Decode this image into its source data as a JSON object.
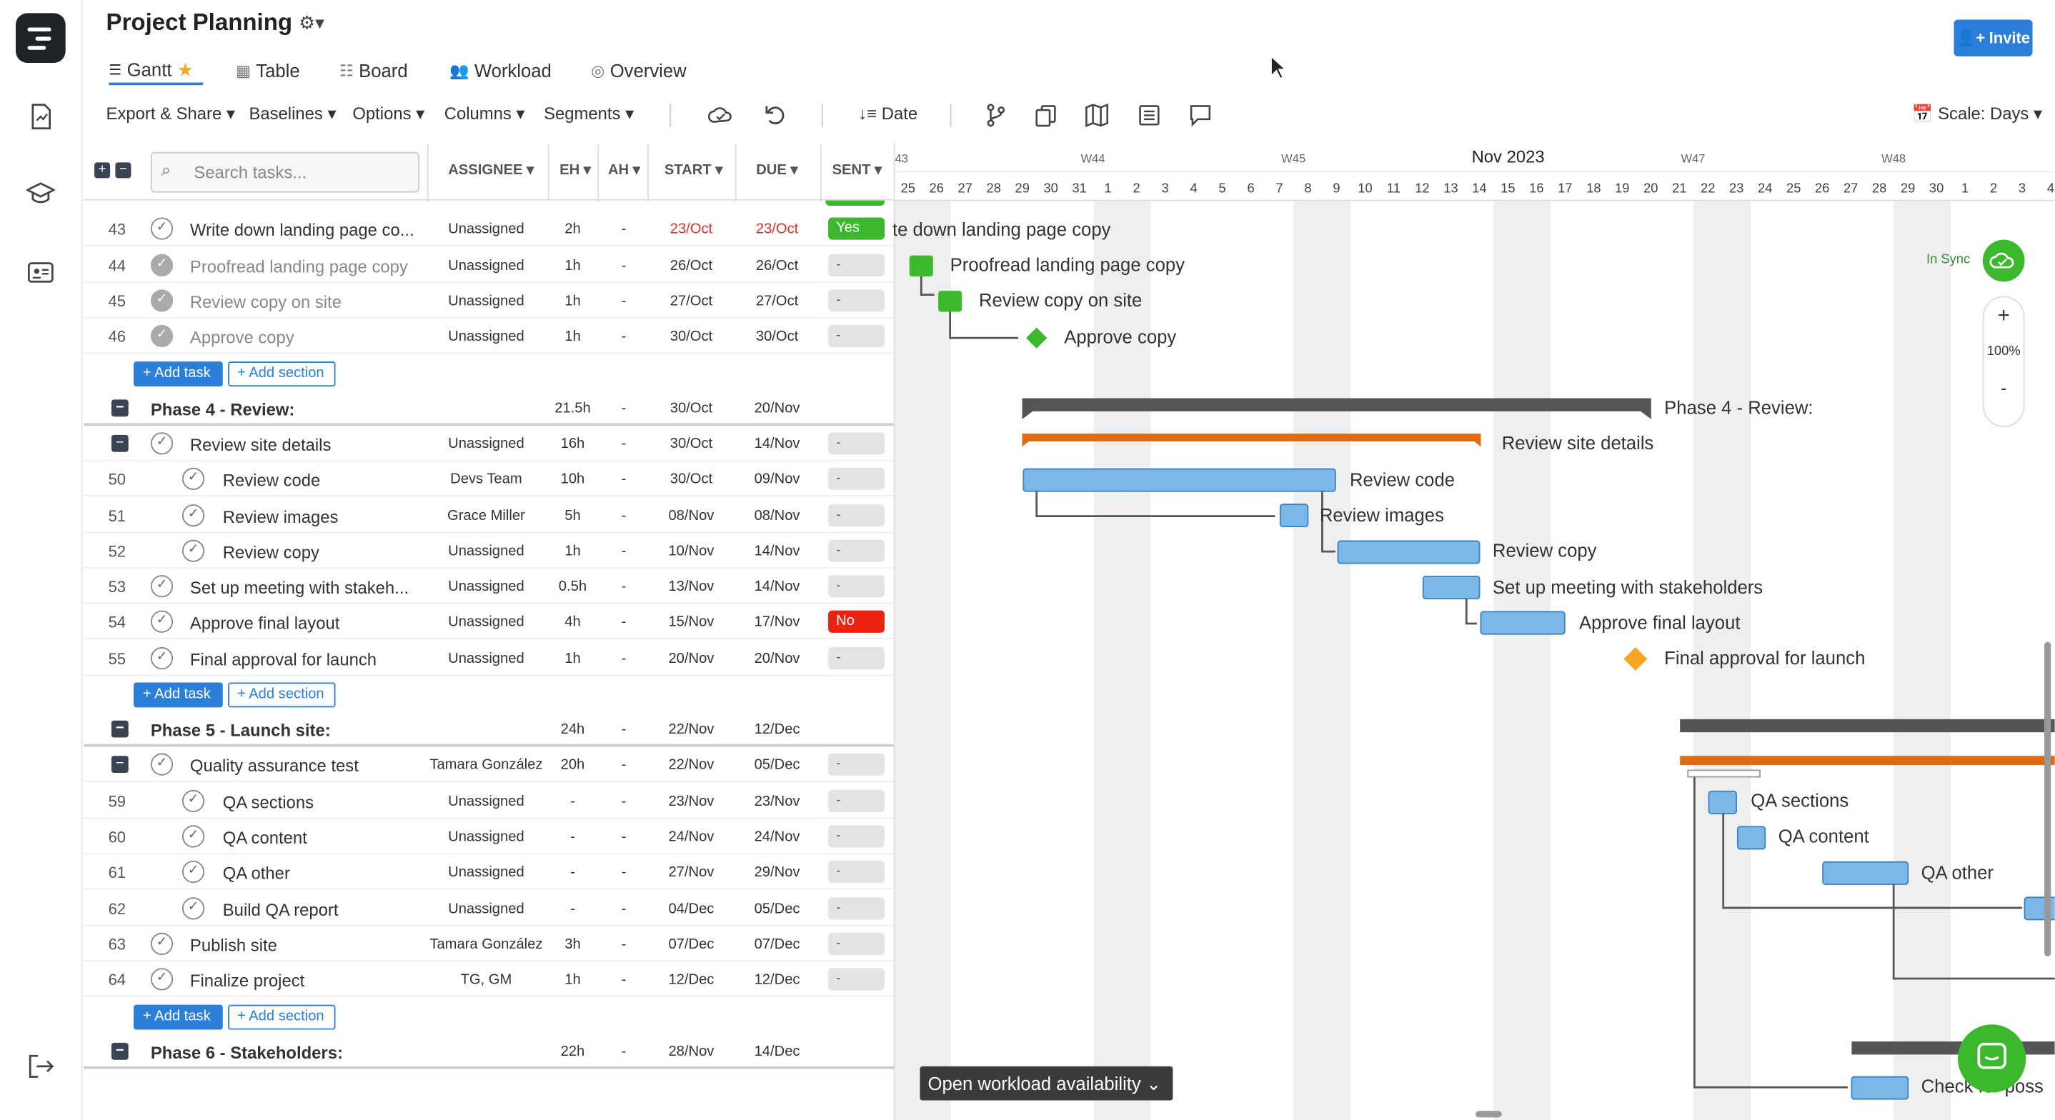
{
  "header": {
    "title": "Project Planning",
    "invite_label": "Invite"
  },
  "tabs": [
    {
      "label": "Gantt",
      "active": true
    },
    {
      "label": "Table"
    },
    {
      "label": "Board"
    },
    {
      "label": "Workload"
    },
    {
      "label": "Overview"
    }
  ],
  "toolbar": {
    "export": "Export & Share",
    "baselines": "Baselines",
    "options": "Options",
    "columns": "Columns",
    "segments": "Segments",
    "date": "Date",
    "scale": "Scale: Days"
  },
  "grid": {
    "search_placeholder": "Search tasks...",
    "columns": {
      "assignee": "ASSIGNEE",
      "eh": "EH",
      "ah": "AH",
      "start": "START",
      "due": "DUE",
      "sent": "SENT"
    }
  },
  "rows": [
    {
      "num": "43",
      "name": "Write down landing page co...",
      "assignee": "Unassigned",
      "eh": "2h",
      "ah": "-",
      "start": "23/Oct",
      "due": "23/Oct",
      "sent": "Yes"
    },
    {
      "num": "44",
      "name": "Proofread landing page copy",
      "assignee": "Unassigned",
      "eh": "1h",
      "ah": "-",
      "start": "26/Oct",
      "due": "26/Oct",
      "sent": "-"
    },
    {
      "num": "45",
      "name": "Review copy on site",
      "assignee": "Unassigned",
      "eh": "1h",
      "ah": "-",
      "start": "27/Oct",
      "due": "27/Oct",
      "sent": "-"
    },
    {
      "num": "46",
      "name": "Approve copy",
      "assignee": "Unassigned",
      "eh": "1h",
      "ah": "-",
      "start": "30/Oct",
      "due": "30/Oct",
      "sent": "-"
    },
    {
      "num": "",
      "name": "Review site details",
      "assignee": "Unassigned",
      "eh": "16h",
      "ah": "-",
      "start": "30/Oct",
      "due": "14/Nov",
      "sent": "-"
    },
    {
      "num": "50",
      "name": "Review code",
      "assignee": "Devs Team",
      "eh": "10h",
      "ah": "-",
      "start": "30/Oct",
      "due": "09/Nov",
      "sent": "-"
    },
    {
      "num": "51",
      "name": "Review images",
      "assignee": "Grace Miller",
      "eh": "5h",
      "ah": "-",
      "start": "08/Nov",
      "due": "08/Nov",
      "sent": "-"
    },
    {
      "num": "52",
      "name": "Review copy",
      "assignee": "Unassigned",
      "eh": "1h",
      "ah": "-",
      "start": "10/Nov",
      "due": "14/Nov",
      "sent": "-"
    },
    {
      "num": "53",
      "name": "Set up meeting with stakeh...",
      "assignee": "Unassigned",
      "eh": "0.5h",
      "ah": "-",
      "start": "13/Nov",
      "due": "14/Nov",
      "sent": "-"
    },
    {
      "num": "54",
      "name": "Approve final layout",
      "assignee": "Unassigned",
      "eh": "4h",
      "ah": "-",
      "start": "15/Nov",
      "due": "17/Nov",
      "sent": "No"
    },
    {
      "num": "55",
      "name": "Final approval for launch",
      "assignee": "Unassigned",
      "eh": "1h",
      "ah": "-",
      "start": "20/Nov",
      "due": "20/Nov",
      "sent": "-"
    },
    {
      "num": "",
      "name": "Quality assurance test",
      "assignee": "Tamara González",
      "eh": "20h",
      "ah": "-",
      "start": "22/Nov",
      "due": "05/Dec",
      "sent": "-"
    },
    {
      "num": "59",
      "name": "QA sections",
      "assignee": "Unassigned",
      "eh": "-",
      "ah": "-",
      "start": "23/Nov",
      "due": "23/Nov",
      "sent": "-"
    },
    {
      "num": "60",
      "name": "QA content",
      "assignee": "Unassigned",
      "eh": "-",
      "ah": "-",
      "start": "24/Nov",
      "due": "24/Nov",
      "sent": "-"
    },
    {
      "num": "61",
      "name": "QA other",
      "assignee": "Unassigned",
      "eh": "-",
      "ah": "-",
      "start": "27/Nov",
      "due": "29/Nov",
      "sent": "-"
    },
    {
      "num": "62",
      "name": "Build QA report",
      "assignee": "Unassigned",
      "eh": "-",
      "ah": "-",
      "start": "04/Dec",
      "due": "05/Dec",
      "sent": "-"
    },
    {
      "num": "63",
      "name": "Publish site",
      "assignee": "Tamara González",
      "eh": "3h",
      "ah": "-",
      "start": "07/Dec",
      "due": "07/Dec",
      "sent": "-"
    },
    {
      "num": "64",
      "name": "Finalize project",
      "assignee": "TG, GM",
      "eh": "1h",
      "ah": "-",
      "start": "12/Dec",
      "due": "12/Dec",
      "sent": "-"
    }
  ],
  "sections": [
    {
      "name": "Phase 4 - Review:",
      "eh": "21.5h",
      "ah": "-",
      "start": "30/Oct",
      "due": "20/Nov"
    },
    {
      "name": "Phase 5 - Launch site:",
      "eh": "24h",
      "ah": "-",
      "start": "22/Nov",
      "due": "12/Dec"
    },
    {
      "name": "Phase 6 - Stakeholders:",
      "eh": "22h",
      "ah": "-",
      "start": "28/Nov",
      "due": "14/Dec"
    }
  ],
  "add": {
    "task": "Add task",
    "section": "Add section"
  },
  "gantt": {
    "month": "Nov 2023",
    "weeks": [
      "W44",
      "W45",
      "W47",
      "W48"
    ],
    "days": [
      "25",
      "26",
      "27",
      "28",
      "29",
      "30",
      "31",
      "1",
      "2",
      "3",
      "4",
      "5",
      "6",
      "7",
      "8",
      "9",
      "10",
      "11",
      "12",
      "13",
      "14",
      "15",
      "16",
      "17",
      "18",
      "19",
      "20",
      "21",
      "22",
      "23",
      "24",
      "25",
      "26",
      "27",
      "28",
      "29",
      "30",
      "1",
      "2",
      "3",
      "4"
    ],
    "labels": {
      "l43": "te down landing page copy",
      "l44": "Proofread landing page copy",
      "l45": "Review copy on site",
      "l46": "Approve copy",
      "p4": "Phase 4 - Review:",
      "rsd": "Review site details",
      "l50": "Review code",
      "l51": "Review images",
      "l52": "Review copy",
      "l53": "Set up meeting with stakeholders",
      "l54": "Approve final layout",
      "l55": "Final approval for launch",
      "l59": "QA sections",
      "l60": "QA content",
      "l61": "QA other",
      "l67": "Check for poss"
    },
    "in_sync": "In Sync",
    "zoom": "100%",
    "open_workload": "Open workload availability"
  },
  "colors": {
    "accent": "#2b7fd8",
    "done": "#3cb82f",
    "bar": "#7db7e8",
    "phase": "#555555",
    "parent": "#e06a10",
    "milestone": "#f5a623"
  }
}
